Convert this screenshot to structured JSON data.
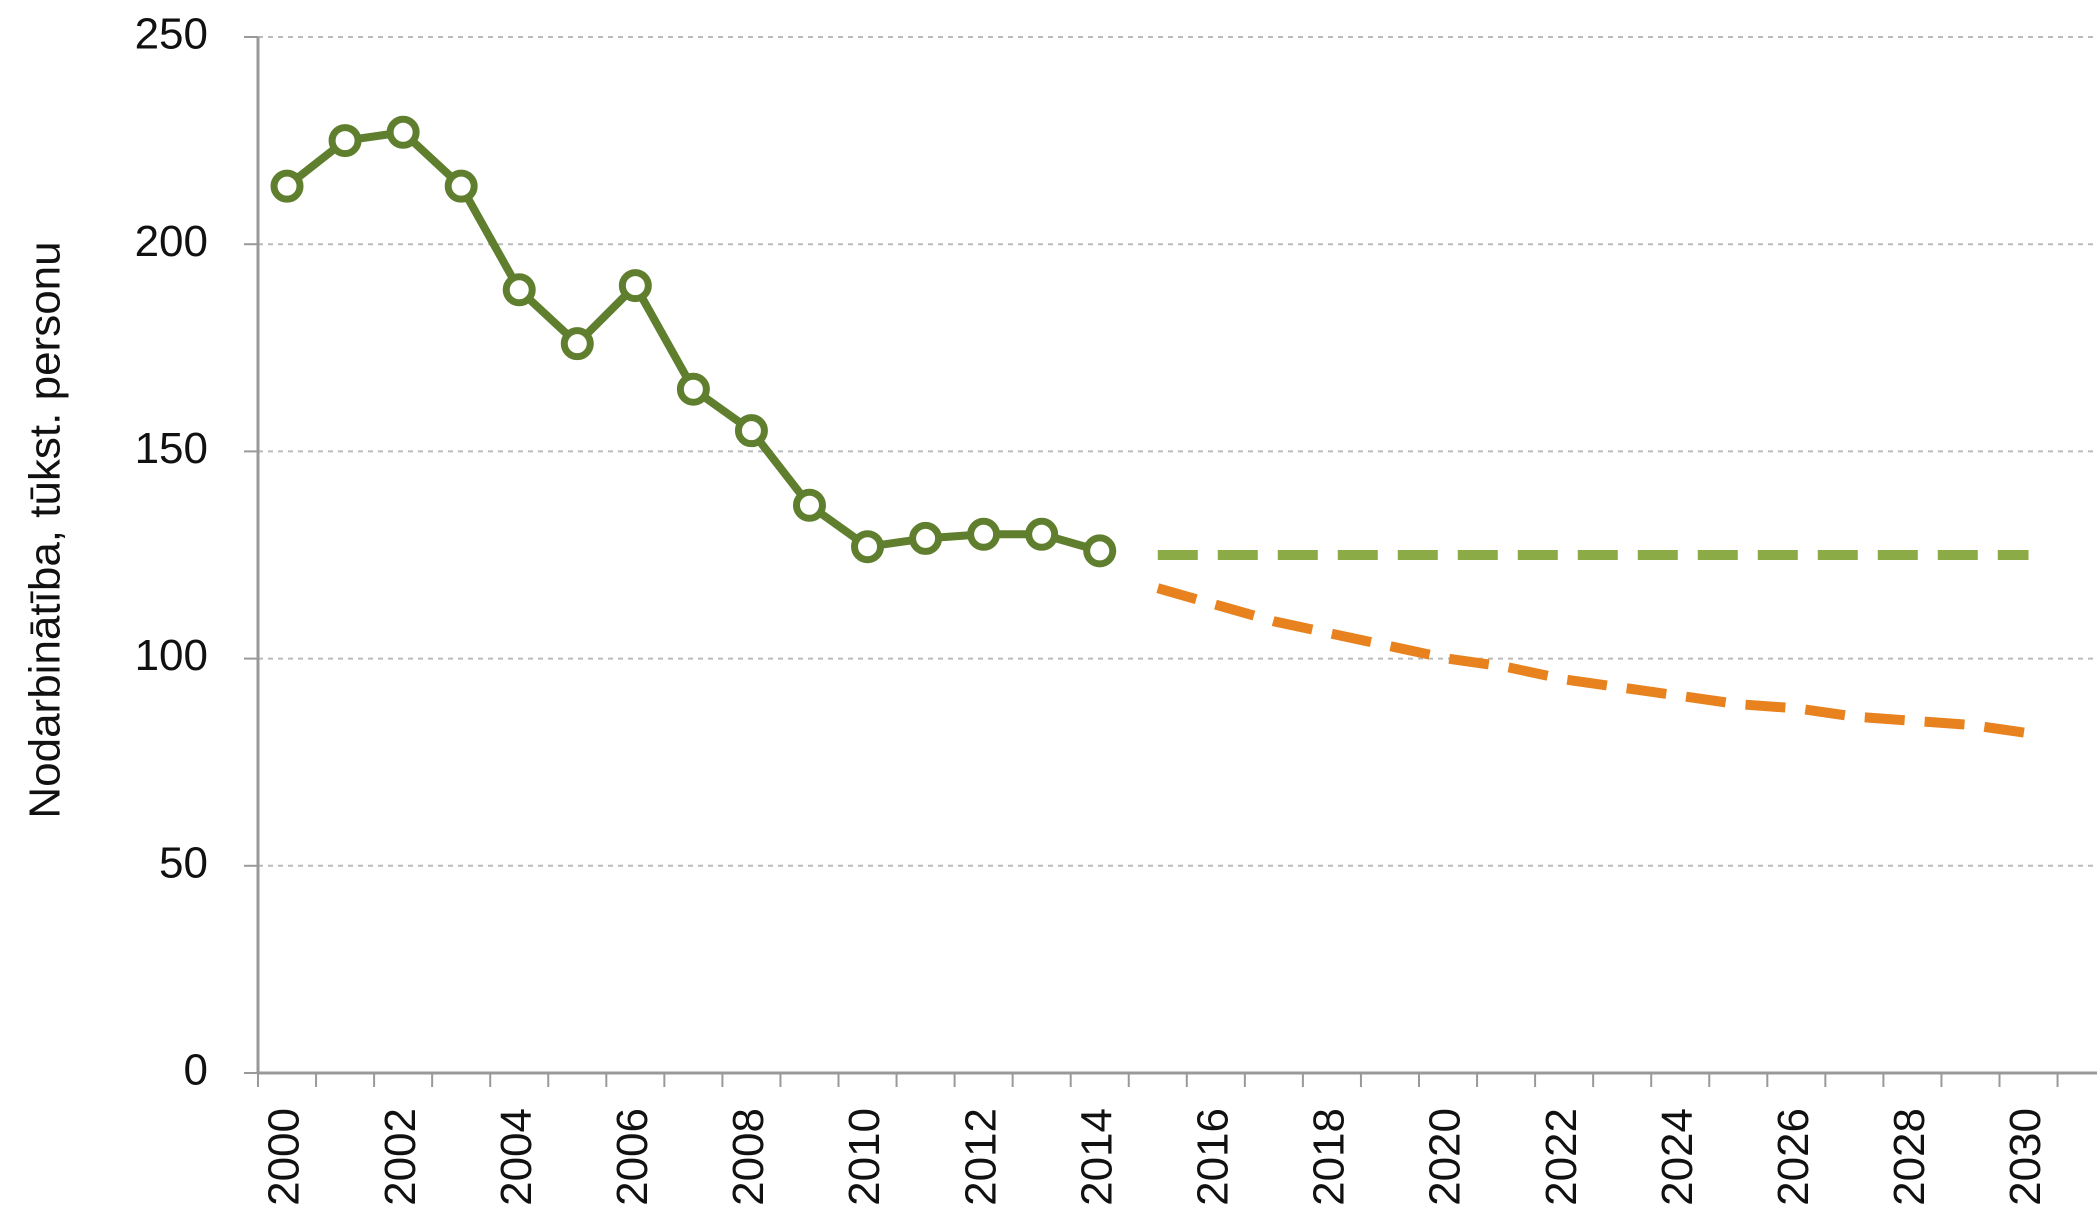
{
  "chart_data": {
    "type": "line",
    "ylabel": "Nodarbinātība, tūkst. personu",
    "categories": [
      "2000",
      null,
      "2002",
      null,
      "2004",
      null,
      "2006",
      null,
      "2008",
      null,
      "2010",
      null,
      "2012",
      null,
      "2014",
      null,
      "2016",
      null,
      "2018",
      null,
      "2020",
      null,
      "2022",
      null,
      "2024",
      null,
      "2026",
      null,
      "2028",
      null,
      "2030"
    ],
    "series": [
      {
        "color": "#5f7f2f",
        "marker": true,
        "dashed": false,
        "values": [
          214,
          225,
          227,
          214,
          189,
          176,
          190,
          165,
          155,
          137,
          127,
          129,
          130,
          130,
          126,
          null,
          null,
          null,
          null,
          null,
          null,
          null,
          null,
          null,
          null,
          null,
          null,
          null,
          null,
          null,
          null
        ]
      },
      {
        "color": "#8aab45",
        "marker": false,
        "dashed": true,
        "values": [
          null,
          null,
          null,
          null,
          null,
          null,
          null,
          null,
          null,
          null,
          null,
          null,
          null,
          null,
          null,
          125,
          125,
          125,
          125,
          125,
          125,
          125,
          125,
          125,
          125,
          125,
          125,
          125,
          125,
          125,
          125
        ]
      },
      {
        "color": "#e8821e",
        "marker": false,
        "dashed": true,
        "values": [
          null,
          null,
          null,
          null,
          null,
          null,
          null,
          null,
          null,
          null,
          null,
          null,
          null,
          null,
          null,
          117,
          113,
          109,
          106,
          103,
          100,
          98,
          95,
          93,
          91,
          89,
          88,
          86,
          85,
          84,
          82
        ]
      }
    ],
    "ylim": [
      0,
      250
    ],
    "yticks": [
      0,
      50,
      100,
      150,
      200,
      250
    ],
    "grid": true
  }
}
